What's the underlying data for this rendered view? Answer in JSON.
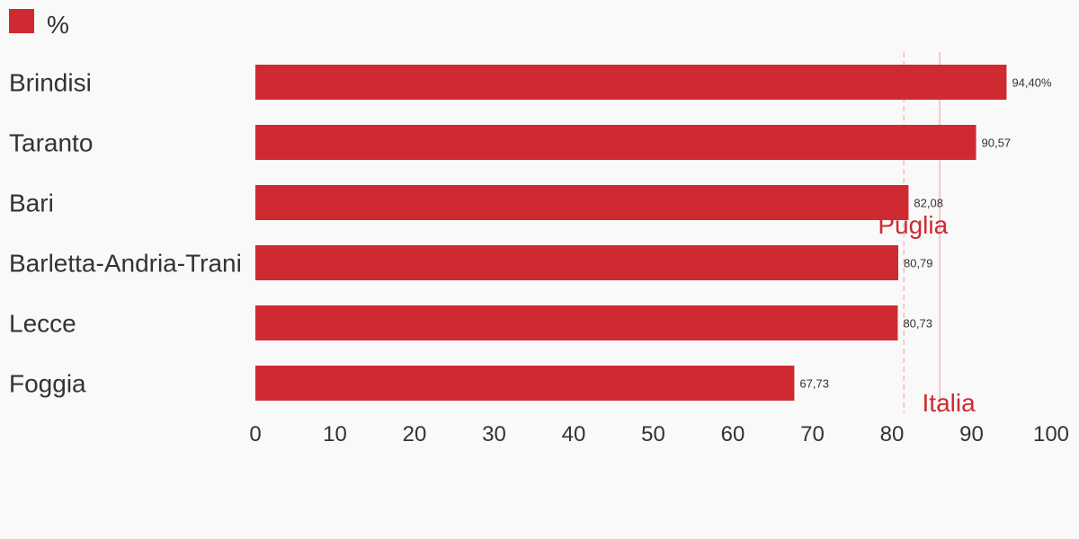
{
  "chart_data": {
    "type": "bar",
    "orientation": "horizontal",
    "legend": {
      "label": "%",
      "color": "#cf2a31",
      "placement": "top-left"
    },
    "categories": [
      "Brindisi",
      "Taranto",
      "Bari",
      "Barletta-Andria-Trani",
      "Lecce",
      "Foggia"
    ],
    "series": [
      {
        "name": "%",
        "values": [
          94.4,
          90.57,
          82.08,
          80.79,
          80.73,
          67.73
        ],
        "data_labels": [
          "94,40%",
          "90,57",
          "82,08",
          "80,79",
          "80,73",
          "67,73"
        ]
      }
    ],
    "xlim": [
      0,
      100
    ],
    "x_ticks": [
      "0",
      "10",
      "20",
      "30",
      "40",
      "50",
      "60",
      "70",
      "80",
      "90",
      "100"
    ],
    "grid": false,
    "reference_lines": [
      {
        "label": "Puglia",
        "value": 81.5,
        "style": "dashed",
        "color": "#f4b8bb",
        "label_color": "#cf2a31"
      },
      {
        "label": "Italia",
        "value": 86.0,
        "style": "solid",
        "color": "#f4b8bb",
        "label_color": "#cf2a31"
      }
    ],
    "bar_color": "#cf2a31"
  }
}
